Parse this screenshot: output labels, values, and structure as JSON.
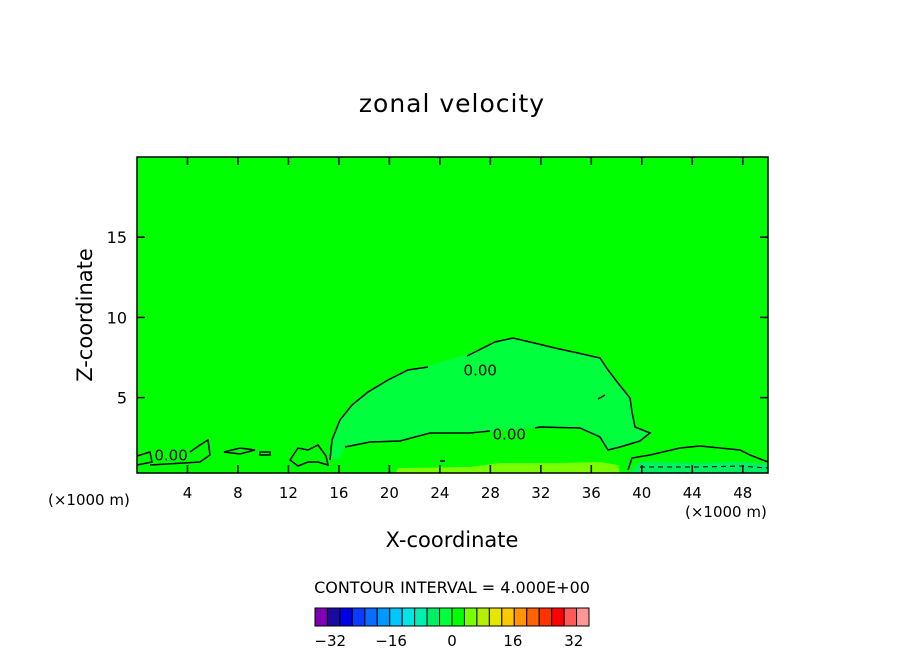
{
  "chart_data": {
    "type": "contour",
    "title": "zonal velocity",
    "xlabel": "X-coordinate",
    "ylabel": "Z-coordinate",
    "x_unit_note_left": "(×1000 m)",
    "x_unit_note_right": "(×1000 m)",
    "xlim": [
      0,
      50
    ],
    "ylim": [
      0.3,
      20
    ],
    "x_ticks": [
      4,
      8,
      12,
      16,
      20,
      24,
      28,
      32,
      36,
      40,
      44,
      48
    ],
    "y_ticks": [
      5,
      10,
      15
    ],
    "contour_interval_text": "CONTOUR INTERVAL = 4.000E+00",
    "contour_labels": [
      {
        "text": "0.00",
        "x": 27.2,
        "y": 6.7
      },
      {
        "text": "0.00",
        "x": 29.5,
        "y": 2.7
      },
      {
        "text": "0.00",
        "x": 2.7,
        "y": 1.4
      }
    ],
    "colorbar": {
      "min": -36,
      "max": 36,
      "step": 4,
      "tick_labels": [
        "-32",
        "-16",
        "0",
        "16",
        "32"
      ],
      "tick_values": [
        -32,
        -16,
        0,
        16,
        32
      ],
      "colors": [
        "#7f00b2",
        "#1a0aa0",
        "#0000e6",
        "#0a3cff",
        "#0a6cff",
        "#009aff",
        "#00c8ff",
        "#00e6e6",
        "#00f0b4",
        "#00f064",
        "#00ff3c",
        "#00ff00",
        "#78ff00",
        "#b4f000",
        "#e6e600",
        "#ffc800",
        "#ff9600",
        "#ff6400",
        "#ff3200",
        "#ff0000",
        "#ff5a5a",
        "#ff9696"
      ]
    },
    "colors": {
      "background_fill": "#00ff00",
      "region_fill": "#00ff3c",
      "near_surface_positive": "#78ff00",
      "near_surface_negative": "#00f064"
    }
  }
}
